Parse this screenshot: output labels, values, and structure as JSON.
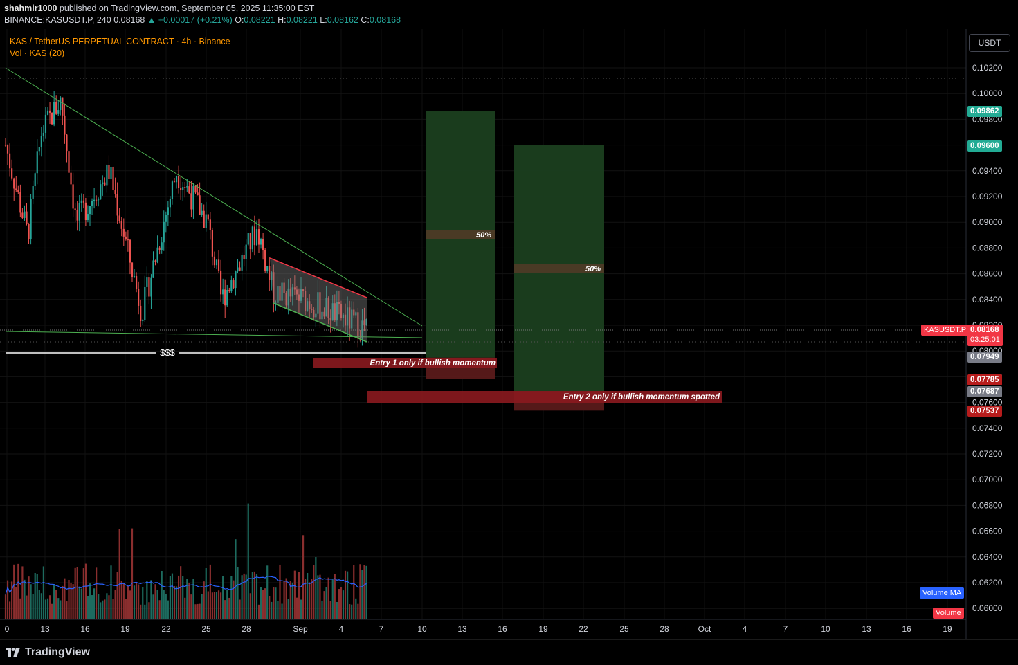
{
  "header": {
    "publisher_user": "shahmir1000",
    "publisher_rest": " published on TradingView.com, September 05, 2025 11:35:00 EST",
    "symbol_line": "BINANCE:KASUSDT.P, 240",
    "last": "0.08168",
    "change": "▲ +0.00017 (+0.21%)",
    "o_label": "O:",
    "o": "0.08221",
    "h_label": "H:",
    "h": "0.08221",
    "l_label": "L:",
    "l": "0.08162",
    "c_label": "C:",
    "c": "0.08168"
  },
  "legend": {
    "title": "KAS / TetherUS PERPETUAL CONTRACT · 4h · Binance",
    "volume": "Vol · KAS (20)"
  },
  "currency_button": "USDT",
  "price_axis": {
    "ticks": [
      "0.10200",
      "0.10000",
      "0.09800",
      "0.09600",
      "0.09400",
      "0.09200",
      "0.09000",
      "0.08800",
      "0.08600",
      "0.08400",
      "0.08200",
      "0.08000",
      "0.07800",
      "0.07600",
      "0.07400",
      "0.07200",
      "0.07000",
      "0.06800",
      "0.06600",
      "0.06400",
      "0.06200",
      "0.06000"
    ]
  },
  "price_tags": {
    "tp1": {
      "value": "0.09862",
      "color": "#22ab94"
    },
    "tp2": {
      "value": "0.09600",
      "color": "#22ab94"
    },
    "symbol": {
      "label": "KASUSDT.P",
      "color": "#f23645"
    },
    "current": {
      "value": "0.08168",
      "countdown": "03:25:01",
      "color": "#f23645"
    },
    "entry1": {
      "value": "0.07949",
      "color": "#787b86"
    },
    "sl1": {
      "value": "0.07785",
      "color": "#b71c1c"
    },
    "entry2": {
      "value": "0.07687",
      "color": "#787b86"
    },
    "sl2": {
      "value": "0.07537",
      "color": "#b71c1c"
    },
    "volume_ma": {
      "label": "Volume MA",
      "color": "#2962ff"
    },
    "volume": {
      "label": "Volume",
      "color": "#f23645"
    }
  },
  "time_axis": {
    "labels": [
      "0",
      "13",
      "16",
      "19",
      "22",
      "25",
      "28",
      "Sep",
      "4",
      "7",
      "10",
      "13",
      "16",
      "19",
      "22",
      "25",
      "28",
      "Oct",
      "4",
      "7",
      "10",
      "13",
      "16",
      "19"
    ]
  },
  "annotations": {
    "liquidity_label": "$$$",
    "entry1_text": "Entry 1 only if bullish momentum",
    "entry2_text": "Entry 2 only if bullish momentum spotted",
    "half1": "50%",
    "half2": "50%"
  },
  "colors": {
    "up": "#26a69a",
    "down": "#ef5350",
    "target_zone": "#1b3f1f",
    "stop_zone": "#5a1a1a",
    "trendline": "#4caf50",
    "volume_ma": "#2962ff"
  },
  "footer": {
    "brand": "TradingView"
  }
}
